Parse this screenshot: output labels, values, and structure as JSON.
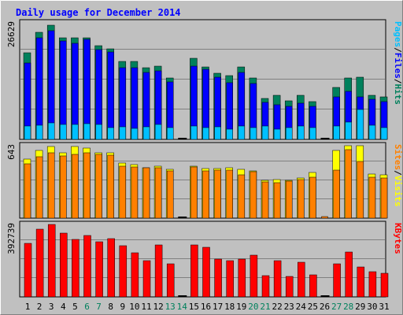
{
  "title": "Daily usage for December 2014",
  "colors": {
    "background": "#c0c0c0",
    "hits": "#00805c",
    "files": "#0000ff",
    "pages": "#00c0ff",
    "visits": "#ffff00",
    "sites": "#ff8000",
    "kbytes": "#ff0000",
    "title": "#0000ff",
    "weekend_label": "#00805c",
    "weekday_label": "#000000"
  },
  "chart_data": [
    {
      "type": "bar",
      "panel": "hits_files_pages",
      "ymax_label": "26629",
      "ylim": [
        0,
        26629
      ],
      "legend": [
        "Pages",
        "Files",
        "Hits"
      ],
      "series": [
        {
          "name": "Hits",
          "values": [
            19800,
            24400,
            26100,
            23300,
            23300,
            23300,
            21400,
            20700,
            17900,
            17800,
            16300,
            16800,
            14000,
            0,
            18600,
            16600,
            15200,
            14600,
            16500,
            14100,
            9400,
            10100,
            8800,
            10100,
            8600,
            0,
            11900,
            14000,
            14300,
            10100,
            9700
          ]
        },
        {
          "name": "Files",
          "values": [
            17400,
            23300,
            24900,
            22500,
            22000,
            22800,
            20500,
            19900,
            16400,
            16400,
            15300,
            15700,
            13200,
            0,
            16800,
            16000,
            14300,
            13000,
            15300,
            12700,
            8500,
            8000,
            7500,
            8200,
            7600,
            0,
            9800,
            11000,
            9700,
            9200,
            8700
          ]
        },
        {
          "name": "Pages",
          "values": [
            3100,
            3300,
            3800,
            3500,
            3500,
            3600,
            3500,
            2700,
            2900,
            2500,
            2900,
            3500,
            2700,
            0,
            3000,
            2700,
            2900,
            2300,
            3100,
            2700,
            3000,
            2300,
            2700,
            3000,
            2700,
            0,
            3000,
            3900,
            6800,
            3300,
            2700
          ]
        }
      ]
    },
    {
      "type": "bar",
      "panel": "visits_sites",
      "ymax_label": "643",
      "ylim": [
        0,
        643
      ],
      "legend": [
        "Sites",
        "Visits"
      ],
      "series": [
        {
          "name": "Visits",
          "values": [
            522,
            602,
            636,
            583,
            636,
            623,
            581,
            582,
            487,
            478,
            448,
            462,
            436,
            0,
            463,
            438,
            437,
            449,
            434,
            417,
            337,
            341,
            338,
            358,
            406,
            0,
            600,
            643,
            643,
            391,
            386
          ]
        },
        {
          "name": "Sites",
          "values": [
            484,
            548,
            581,
            554,
            565,
            577,
            563,
            556,
            462,
            453,
            444,
            449,
            417,
            0,
            457,
            419,
            426,
            428,
            384,
            414,
            320,
            316,
            330,
            342,
            360,
            13,
            429,
            609,
            503,
            365,
            357
          ]
        }
      ]
    },
    {
      "type": "bar",
      "panel": "kbytes",
      "ymax_label": "392739",
      "ylim": [
        0,
        392739
      ],
      "legend": [
        "KBytes"
      ],
      "series": [
        {
          "name": "KBytes",
          "values": [
            292000,
            365000,
            391000,
            344000,
            310000,
            333000,
            298000,
            315000,
            279000,
            239000,
            197000,
            280000,
            180000,
            0,
            283000,
            267000,
            205000,
            195000,
            207000,
            226000,
            115000,
            198000,
            112000,
            187000,
            121000,
            0,
            180000,
            245000,
            163000,
            136000,
            130000
          ]
        }
      ]
    }
  ],
  "x_labels": [
    "1",
    "2",
    "3",
    "4",
    "5",
    "6",
    "7",
    "8",
    "9",
    "10",
    "11",
    "12",
    "13",
    "14",
    "15",
    "16",
    "17",
    "18",
    "19",
    "20",
    "21",
    "22",
    "23",
    "24",
    "25",
    "26",
    "27",
    "28",
    "29",
    "30",
    "31"
  ],
  "weekend_days": [
    6,
    7,
    13,
    14,
    20,
    21,
    27,
    28
  ]
}
